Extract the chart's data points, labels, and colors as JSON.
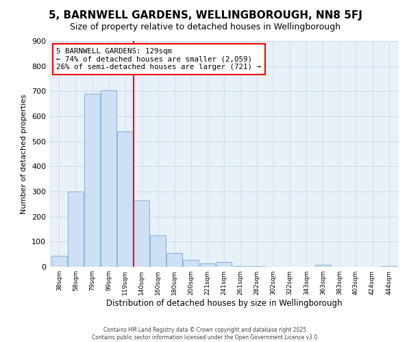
{
  "title": "5, BARNWELL GARDENS, WELLINGBOROUGH, NN8 5FJ",
  "subtitle": "Size of property relative to detached houses in Wellingborough",
  "xlabel": "Distribution of detached houses by size in Wellingborough",
  "ylabel": "Number of detached properties",
  "bar_labels": [
    "38sqm",
    "58sqm",
    "79sqm",
    "99sqm",
    "119sqm",
    "140sqm",
    "160sqm",
    "180sqm",
    "200sqm",
    "221sqm",
    "241sqm",
    "261sqm",
    "282sqm",
    "302sqm",
    "322sqm",
    "343sqm",
    "363sqm",
    "383sqm",
    "403sqm",
    "424sqm",
    "444sqm"
  ],
  "bar_values": [
    45,
    300,
    690,
    705,
    540,
    265,
    125,
    55,
    28,
    15,
    18,
    3,
    2,
    1,
    0,
    0,
    8,
    0,
    1,
    0,
    2
  ],
  "bar_color": "#cde0f5",
  "bar_edge_color": "#90b8d8",
  "property_line_x": 4.5,
  "property_line_color": "red",
  "annotation_line1": "5 BARNWELL GARDENS: 129sqm",
  "annotation_line2": "← 74% of detached houses are smaller (2,059)",
  "annotation_line3": "26% of semi-detached houses are larger (721) →",
  "ylim": [
    0,
    900
  ],
  "yticks": [
    0,
    100,
    200,
    300,
    400,
    500,
    600,
    700,
    800,
    900
  ],
  "footnote_line1": "Contains HM Land Registry data © Crown copyright and database right 2025.",
  "footnote_line2": "Contains public sector information licensed under the Open Government Licence v3.0.",
  "background_color": "#ffffff",
  "plot_bg_color": "#e8f0f8",
  "grid_color": "#c8d8ec",
  "title_fontsize": 11,
  "subtitle_fontsize": 9
}
